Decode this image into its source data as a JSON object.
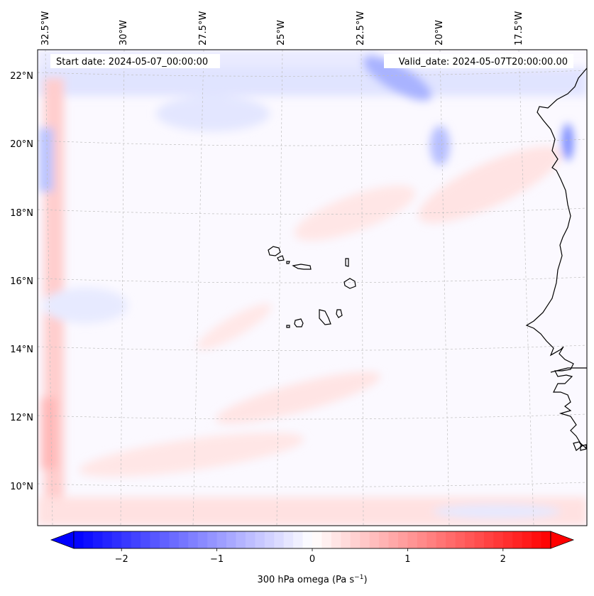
{
  "map": {
    "start_date_label": "Start date: 2024-05-07_00:00:00",
    "valid_date_label": "Valid_date: 2024-05-07T20:00:00.00",
    "lon_labels": [
      "32.5°W",
      "30°W",
      "27.5°W",
      "25°W",
      "22.5°W",
      "20°W",
      "17.5°W"
    ],
    "lat_labels": [
      "22°N",
      "20°N",
      "18°N",
      "16°N",
      "14°N",
      "12°N",
      "10°N"
    ],
    "field": "300 hPa omega",
    "colormap": "bwr",
    "gridlines": true,
    "coastline_color": "#000000"
  },
  "colorbar": {
    "label_text": "300 hPa omega (Pa s",
    "label_unit_exp": "−1",
    "label_close": ")",
    "ticks": [
      "−2",
      "−1",
      "0",
      "1",
      "2"
    ],
    "tick_values": [
      -2,
      -1,
      0,
      1,
      2
    ],
    "range": [
      -2.5,
      2.5
    ],
    "colors": {
      "min": "#0000ff",
      "mid": "#ffffff",
      "max": "#ff0000"
    },
    "extend": "both"
  }
}
